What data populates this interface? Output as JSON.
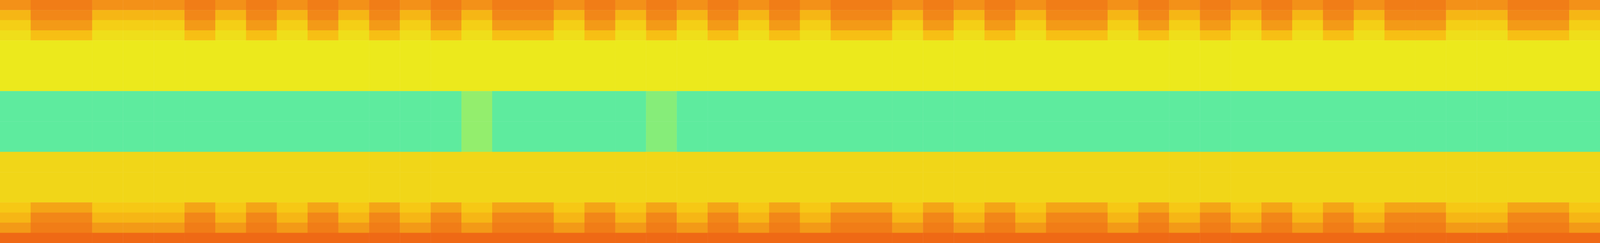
{
  "chart_data": {
    "type": "heatmap",
    "tick_labels": false,
    "grid": false,
    "zlim": [
      0.4,
      0.9
    ],
    "cells": [
      [
        0.76,
        0.8,
        0.8,
        0.76,
        0.76,
        0.76,
        0.8,
        0.76,
        0.8,
        0.76,
        0.8,
        0.76,
        0.8,
        0.76,
        0.8,
        0.76,
        0.8,
        0.8,
        0.76,
        0.8,
        0.76,
        0.8,
        0.76,
        0.8,
        0.76,
        0.8,
        0.76,
        0.8,
        0.8,
        0.76,
        0.8,
        0.76,
        0.8,
        0.76,
        0.8,
        0.8,
        0.76,
        0.8,
        0.76,
        0.8,
        0.76,
        0.8,
        0.76,
        0.8,
        0.76,
        0.8,
        0.8,
        0.76,
        0.76,
        0.8,
        0.8,
        0.76
      ],
      [
        0.68,
        0.78,
        0.78,
        0.68,
        0.68,
        0.68,
        0.78,
        0.68,
        0.78,
        0.68,
        0.78,
        0.68,
        0.78,
        0.68,
        0.78,
        0.68,
        0.78,
        0.78,
        0.68,
        0.78,
        0.68,
        0.78,
        0.68,
        0.78,
        0.68,
        0.78,
        0.68,
        0.78,
        0.78,
        0.68,
        0.78,
        0.68,
        0.78,
        0.68,
        0.78,
        0.78,
        0.68,
        0.78,
        0.68,
        0.78,
        0.68,
        0.78,
        0.68,
        0.78,
        0.68,
        0.78,
        0.78,
        0.68,
        0.68,
        0.78,
        0.78,
        0.68
      ],
      [
        0.62,
        0.74,
        0.74,
        0.62,
        0.62,
        0.62,
        0.74,
        0.62,
        0.74,
        0.62,
        0.74,
        0.62,
        0.74,
        0.62,
        0.74,
        0.62,
        0.74,
        0.74,
        0.62,
        0.74,
        0.62,
        0.74,
        0.62,
        0.74,
        0.62,
        0.74,
        0.62,
        0.74,
        0.74,
        0.62,
        0.74,
        0.62,
        0.74,
        0.62,
        0.74,
        0.74,
        0.62,
        0.74,
        0.62,
        0.74,
        0.62,
        0.74,
        0.62,
        0.74,
        0.62,
        0.74,
        0.74,
        0.62,
        0.62,
        0.74,
        0.74,
        0.62
      ],
      [
        0.58,
        0.66,
        0.66,
        0.58,
        0.58,
        0.58,
        0.66,
        0.58,
        0.66,
        0.58,
        0.66,
        0.58,
        0.66,
        0.58,
        0.66,
        0.58,
        0.66,
        0.66,
        0.58,
        0.66,
        0.58,
        0.66,
        0.58,
        0.66,
        0.58,
        0.66,
        0.58,
        0.66,
        0.66,
        0.58,
        0.66,
        0.58,
        0.66,
        0.58,
        0.66,
        0.66,
        0.58,
        0.66,
        0.58,
        0.66,
        0.58,
        0.66,
        0.58,
        0.66,
        0.58,
        0.66,
        0.66,
        0.58,
        0.58,
        0.66,
        0.66,
        0.58
      ],
      [
        0.55,
        0.55,
        0.55,
        0.55,
        0.55,
        0.55,
        0.55,
        0.55,
        0.55,
        0.55,
        0.55,
        0.55,
        0.55,
        0.55,
        0.55,
        0.55,
        0.55,
        0.55,
        0.55,
        0.55,
        0.55,
        0.55,
        0.55,
        0.55,
        0.55,
        0.55,
        0.55,
        0.55,
        0.55,
        0.55,
        0.55,
        0.55,
        0.55,
        0.55,
        0.55,
        0.55,
        0.55,
        0.55,
        0.55,
        0.55,
        0.55,
        0.55,
        0.55,
        0.55,
        0.55,
        0.55,
        0.55,
        0.55,
        0.55,
        0.55,
        0.55,
        0.55
      ],
      [
        0.55,
        0.55,
        0.55,
        0.55,
        0.55,
        0.55,
        0.55,
        0.55,
        0.55,
        0.55,
        0.55,
        0.55,
        0.55,
        0.55,
        0.55,
        0.55,
        0.55,
        0.55,
        0.55,
        0.55,
        0.55,
        0.55,
        0.55,
        0.55,
        0.55,
        0.55,
        0.55,
        0.55,
        0.55,
        0.55,
        0.55,
        0.55,
        0.55,
        0.55,
        0.55,
        0.55,
        0.55,
        0.55,
        0.55,
        0.55,
        0.55,
        0.55,
        0.55,
        0.55,
        0.55,
        0.55,
        0.55,
        0.55,
        0.55,
        0.55,
        0.55,
        0.55
      ],
      [
        0.55,
        0.55,
        0.55,
        0.55,
        0.55,
        0.55,
        0.55,
        0.55,
        0.55,
        0.55,
        0.55,
        0.55,
        0.55,
        0.55,
        0.55,
        0.55,
        0.55,
        0.55,
        0.55,
        0.55,
        0.55,
        0.55,
        0.55,
        0.55,
        0.55,
        0.55,
        0.55,
        0.55,
        0.55,
        0.55,
        0.55,
        0.55,
        0.55,
        0.55,
        0.55,
        0.55,
        0.55,
        0.55,
        0.55,
        0.55,
        0.55,
        0.55,
        0.55,
        0.55,
        0.55,
        0.55,
        0.55,
        0.55,
        0.55,
        0.55,
        0.55,
        0.55
      ],
      [
        0.55,
        0.55,
        0.55,
        0.55,
        0.55,
        0.55,
        0.55,
        0.55,
        0.55,
        0.55,
        0.55,
        0.55,
        0.55,
        0.55,
        0.55,
        0.55,
        0.55,
        0.55,
        0.55,
        0.55,
        0.55,
        0.55,
        0.55,
        0.55,
        0.55,
        0.55,
        0.55,
        0.55,
        0.55,
        0.55,
        0.55,
        0.55,
        0.55,
        0.55,
        0.55,
        0.55,
        0.55,
        0.55,
        0.55,
        0.55,
        0.55,
        0.55,
        0.55,
        0.55,
        0.55,
        0.55,
        0.55,
        0.55,
        0.55,
        0.55,
        0.55,
        0.55
      ],
      [
        0.55,
        0.55,
        0.55,
        0.55,
        0.55,
        0.55,
        0.55,
        0.55,
        0.55,
        0.55,
        0.55,
        0.55,
        0.55,
        0.55,
        0.55,
        0.55,
        0.55,
        0.55,
        0.55,
        0.55,
        0.55,
        0.55,
        0.55,
        0.55,
        0.55,
        0.55,
        0.55,
        0.55,
        0.55,
        0.55,
        0.55,
        0.55,
        0.55,
        0.55,
        0.55,
        0.55,
        0.55,
        0.55,
        0.55,
        0.55,
        0.55,
        0.55,
        0.55,
        0.55,
        0.55,
        0.55,
        0.55,
        0.55,
        0.55,
        0.55,
        0.55,
        0.55
      ],
      [
        0.42,
        0.42,
        0.42,
        0.42,
        0.42,
        0.42,
        0.42,
        0.42,
        0.42,
        0.42,
        0.42,
        0.42,
        0.42,
        0.42,
        0.42,
        0.46,
        0.42,
        0.42,
        0.42,
        0.42,
        0.42,
        0.45,
        0.42,
        0.42,
        0.42,
        0.42,
        0.42,
        0.42,
        0.42,
        0.42,
        0.42,
        0.42,
        0.42,
        0.42,
        0.42,
        0.42,
        0.42,
        0.42,
        0.42,
        0.42,
        0.42,
        0.42,
        0.42,
        0.42,
        0.42,
        0.42,
        0.42,
        0.42,
        0.42,
        0.42,
        0.42,
        0.42
      ],
      [
        0.42,
        0.42,
        0.42,
        0.42,
        0.42,
        0.42,
        0.42,
        0.42,
        0.42,
        0.42,
        0.42,
        0.42,
        0.42,
        0.42,
        0.42,
        0.46,
        0.42,
        0.42,
        0.42,
        0.42,
        0.42,
        0.45,
        0.42,
        0.42,
        0.42,
        0.42,
        0.42,
        0.42,
        0.42,
        0.42,
        0.42,
        0.42,
        0.42,
        0.42,
        0.42,
        0.42,
        0.42,
        0.42,
        0.42,
        0.42,
        0.42,
        0.42,
        0.42,
        0.42,
        0.42,
        0.42,
        0.42,
        0.42,
        0.42,
        0.42,
        0.42,
        0.42
      ],
      [
        0.42,
        0.42,
        0.42,
        0.42,
        0.42,
        0.42,
        0.42,
        0.42,
        0.42,
        0.42,
        0.42,
        0.42,
        0.42,
        0.42,
        0.42,
        0.46,
        0.42,
        0.42,
        0.42,
        0.42,
        0.42,
        0.45,
        0.42,
        0.42,
        0.42,
        0.42,
        0.42,
        0.42,
        0.42,
        0.42,
        0.42,
        0.42,
        0.42,
        0.42,
        0.42,
        0.42,
        0.42,
        0.42,
        0.42,
        0.42,
        0.42,
        0.42,
        0.42,
        0.42,
        0.42,
        0.42,
        0.42,
        0.42,
        0.42,
        0.42,
        0.42,
        0.42
      ],
      [
        0.42,
        0.42,
        0.42,
        0.42,
        0.42,
        0.42,
        0.42,
        0.42,
        0.42,
        0.42,
        0.42,
        0.42,
        0.42,
        0.42,
        0.42,
        0.46,
        0.42,
        0.42,
        0.42,
        0.42,
        0.42,
        0.45,
        0.42,
        0.42,
        0.42,
        0.42,
        0.42,
        0.42,
        0.42,
        0.42,
        0.42,
        0.42,
        0.42,
        0.42,
        0.42,
        0.42,
        0.42,
        0.42,
        0.42,
        0.42,
        0.42,
        0.42,
        0.42,
        0.42,
        0.42,
        0.42,
        0.42,
        0.42,
        0.42,
        0.42,
        0.42,
        0.42
      ],
      [
        0.42,
        0.42,
        0.42,
        0.42,
        0.42,
        0.42,
        0.42,
        0.42,
        0.42,
        0.42,
        0.42,
        0.42,
        0.42,
        0.42,
        0.42,
        0.46,
        0.42,
        0.42,
        0.42,
        0.42,
        0.42,
        0.45,
        0.42,
        0.42,
        0.42,
        0.42,
        0.42,
        0.42,
        0.42,
        0.42,
        0.42,
        0.42,
        0.42,
        0.42,
        0.42,
        0.42,
        0.42,
        0.42,
        0.42,
        0.42,
        0.42,
        0.42,
        0.42,
        0.42,
        0.42,
        0.42,
        0.42,
        0.42,
        0.42,
        0.42,
        0.42,
        0.42
      ],
      [
        0.42,
        0.42,
        0.42,
        0.42,
        0.42,
        0.42,
        0.42,
        0.42,
        0.42,
        0.42,
        0.42,
        0.42,
        0.42,
        0.42,
        0.42,
        0.46,
        0.42,
        0.42,
        0.42,
        0.42,
        0.42,
        0.45,
        0.42,
        0.42,
        0.42,
        0.42,
        0.42,
        0.42,
        0.42,
        0.42,
        0.42,
        0.42,
        0.42,
        0.42,
        0.42,
        0.42,
        0.42,
        0.42,
        0.42,
        0.42,
        0.42,
        0.42,
        0.42,
        0.42,
        0.42,
        0.42,
        0.42,
        0.42,
        0.42,
        0.42,
        0.42,
        0.42
      ],
      [
        0.6,
        0.6,
        0.6,
        0.6,
        0.6,
        0.6,
        0.6,
        0.6,
        0.6,
        0.6,
        0.6,
        0.6,
        0.6,
        0.6,
        0.6,
        0.6,
        0.6,
        0.6,
        0.6,
        0.6,
        0.6,
        0.6,
        0.6,
        0.6,
        0.6,
        0.6,
        0.6,
        0.6,
        0.6,
        0.6,
        0.6,
        0.6,
        0.6,
        0.6,
        0.6,
        0.6,
        0.6,
        0.6,
        0.6,
        0.6,
        0.6,
        0.6,
        0.6,
        0.6,
        0.6,
        0.6,
        0.6,
        0.6,
        0.6,
        0.6,
        0.6,
        0.6
      ],
      [
        0.6,
        0.6,
        0.6,
        0.6,
        0.6,
        0.6,
        0.6,
        0.6,
        0.6,
        0.6,
        0.6,
        0.6,
        0.6,
        0.6,
        0.6,
        0.6,
        0.6,
        0.6,
        0.6,
        0.6,
        0.6,
        0.6,
        0.6,
        0.6,
        0.6,
        0.6,
        0.6,
        0.6,
        0.6,
        0.6,
        0.6,
        0.6,
        0.6,
        0.6,
        0.6,
        0.6,
        0.6,
        0.6,
        0.6,
        0.6,
        0.6,
        0.6,
        0.6,
        0.6,
        0.6,
        0.6,
        0.6,
        0.6,
        0.6,
        0.6,
        0.6,
        0.6
      ],
      [
        0.6,
        0.6,
        0.6,
        0.6,
        0.6,
        0.6,
        0.6,
        0.6,
        0.6,
        0.6,
        0.6,
        0.6,
        0.6,
        0.6,
        0.6,
        0.6,
        0.6,
        0.6,
        0.6,
        0.6,
        0.6,
        0.6,
        0.6,
        0.6,
        0.6,
        0.6,
        0.6,
        0.6,
        0.6,
        0.6,
        0.6,
        0.6,
        0.6,
        0.6,
        0.6,
        0.6,
        0.6,
        0.6,
        0.6,
        0.6,
        0.6,
        0.6,
        0.6,
        0.6,
        0.6,
        0.6,
        0.6,
        0.6,
        0.6,
        0.6,
        0.6,
        0.6
      ],
      [
        0.6,
        0.6,
        0.6,
        0.6,
        0.6,
        0.6,
        0.6,
        0.6,
        0.6,
        0.6,
        0.6,
        0.6,
        0.6,
        0.6,
        0.6,
        0.6,
        0.6,
        0.6,
        0.6,
        0.6,
        0.6,
        0.6,
        0.6,
        0.6,
        0.6,
        0.6,
        0.6,
        0.6,
        0.6,
        0.6,
        0.6,
        0.6,
        0.6,
        0.6,
        0.6,
        0.6,
        0.6,
        0.6,
        0.6,
        0.6,
        0.6,
        0.6,
        0.6,
        0.6,
        0.6,
        0.6,
        0.6,
        0.6,
        0.6,
        0.6,
        0.6,
        0.6
      ],
      [
        0.6,
        0.6,
        0.6,
        0.6,
        0.6,
        0.6,
        0.6,
        0.6,
        0.6,
        0.6,
        0.6,
        0.6,
        0.6,
        0.6,
        0.6,
        0.6,
        0.6,
        0.6,
        0.6,
        0.6,
        0.6,
        0.6,
        0.6,
        0.6,
        0.6,
        0.6,
        0.6,
        0.6,
        0.6,
        0.6,
        0.6,
        0.6,
        0.6,
        0.6,
        0.6,
        0.6,
        0.6,
        0.6,
        0.6,
        0.6,
        0.6,
        0.6,
        0.6,
        0.6,
        0.6,
        0.6,
        0.6,
        0.6,
        0.6,
        0.6,
        0.6,
        0.6
      ],
      [
        0.64,
        0.72,
        0.72,
        0.64,
        0.64,
        0.64,
        0.72,
        0.64,
        0.72,
        0.64,
        0.72,
        0.64,
        0.72,
        0.64,
        0.72,
        0.64,
        0.72,
        0.72,
        0.64,
        0.72,
        0.64,
        0.72,
        0.64,
        0.72,
        0.64,
        0.72,
        0.64,
        0.72,
        0.72,
        0.64,
        0.72,
        0.64,
        0.72,
        0.64,
        0.72,
        0.72,
        0.64,
        0.72,
        0.64,
        0.72,
        0.64,
        0.72,
        0.64,
        0.72,
        0.64,
        0.72,
        0.72,
        0.64,
        0.64,
        0.72,
        0.72,
        0.64
      ],
      [
        0.68,
        0.78,
        0.78,
        0.68,
        0.68,
        0.68,
        0.78,
        0.68,
        0.78,
        0.68,
        0.78,
        0.68,
        0.78,
        0.68,
        0.78,
        0.68,
        0.78,
        0.78,
        0.68,
        0.78,
        0.68,
        0.78,
        0.68,
        0.78,
        0.68,
        0.78,
        0.68,
        0.78,
        0.78,
        0.68,
        0.78,
        0.68,
        0.78,
        0.68,
        0.78,
        0.78,
        0.68,
        0.78,
        0.68,
        0.78,
        0.68,
        0.78,
        0.68,
        0.78,
        0.68,
        0.78,
        0.78,
        0.68,
        0.68,
        0.78,
        0.78,
        0.68
      ],
      [
        0.74,
        0.8,
        0.8,
        0.74,
        0.74,
        0.74,
        0.8,
        0.74,
        0.8,
        0.74,
        0.8,
        0.74,
        0.8,
        0.74,
        0.8,
        0.74,
        0.8,
        0.8,
        0.74,
        0.8,
        0.74,
        0.8,
        0.74,
        0.8,
        0.74,
        0.8,
        0.74,
        0.8,
        0.8,
        0.74,
        0.8,
        0.74,
        0.8,
        0.74,
        0.8,
        0.8,
        0.74,
        0.8,
        0.74,
        0.8,
        0.74,
        0.8,
        0.74,
        0.8,
        0.74,
        0.8,
        0.8,
        0.74,
        0.74,
        0.8,
        0.8,
        0.74
      ],
      [
        0.84,
        0.84,
        0.84,
        0.84,
        0.84,
        0.84,
        0.84,
        0.84,
        0.84,
        0.84,
        0.84,
        0.84,
        0.84,
        0.84,
        0.84,
        0.84,
        0.84,
        0.84,
        0.84,
        0.84,
        0.84,
        0.84,
        0.84,
        0.84,
        0.84,
        0.84,
        0.84,
        0.84,
        0.84,
        0.84,
        0.84,
        0.84,
        0.84,
        0.84,
        0.84,
        0.84,
        0.84,
        0.84,
        0.84,
        0.84,
        0.84,
        0.84,
        0.84,
        0.84,
        0.84,
        0.84,
        0.84,
        0.84,
        0.84,
        0.84,
        0.84,
        0.84
      ]
    ]
  }
}
